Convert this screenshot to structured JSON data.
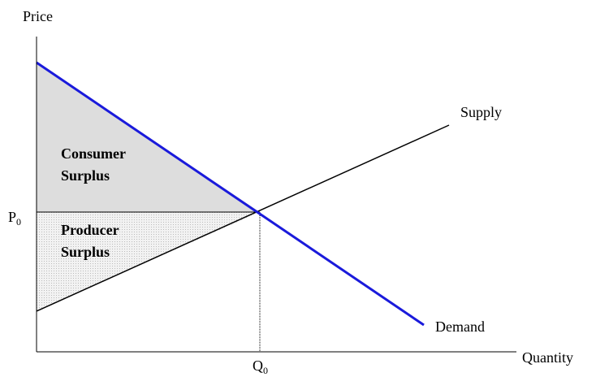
{
  "axes": {
    "y_label": "Price",
    "x_label": "Quantity"
  },
  "curves": {
    "supply": "Supply",
    "demand": "Demand"
  },
  "regions": {
    "consumer_surplus": [
      "Consumer",
      "Surplus"
    ],
    "producer_surplus": [
      "Producer",
      "Surplus"
    ]
  },
  "equilibrium": {
    "price": {
      "base": "P",
      "sub": "0"
    },
    "quantity": {
      "base": "Q",
      "sub": "0"
    }
  }
}
